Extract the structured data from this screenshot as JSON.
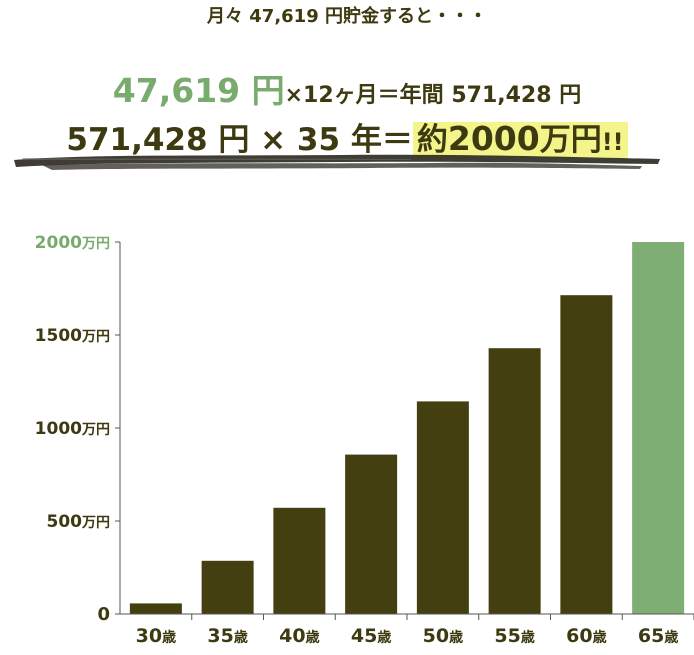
{
  "header": {
    "line1": "月々 47,619 円貯金すると・・・",
    "line2_big": "47,619 円",
    "line2_rest": "×12ヶ月＝年間 571,428 円",
    "line3_main": "571,428 円 × 35 年＝",
    "line3_highlight_prefix": "約",
    "line3_highlight_number": "2000",
    "line3_highlight_unit": "万円",
    "line3_highlight_bang": "!!"
  },
  "colors": {
    "bar_dark": "#433f10",
    "bar_highlight": "#7eae73",
    "accent_green": "#7aab6e",
    "highlight_yellow": "#f3f58a",
    "text_dark": "#3d3a11"
  },
  "chart_data": {
    "type": "bar",
    "categories": [
      "30歳",
      "35歳",
      "40歳",
      "45歳",
      "50歳",
      "55歳",
      "60歳",
      "65歳"
    ],
    "values": [
      57,
      286,
      571,
      857,
      1143,
      1429,
      1714,
      2000
    ],
    "highlight_index": 7,
    "ylim": [
      0,
      2000
    ],
    "yticks": [
      0,
      500,
      1000,
      1500,
      2000
    ],
    "ytick_labels": [
      "0",
      "500万円",
      "1000万円",
      "1500万円",
      "2000万円"
    ],
    "xlabel": "",
    "ylabel": "",
    "grid": false
  }
}
